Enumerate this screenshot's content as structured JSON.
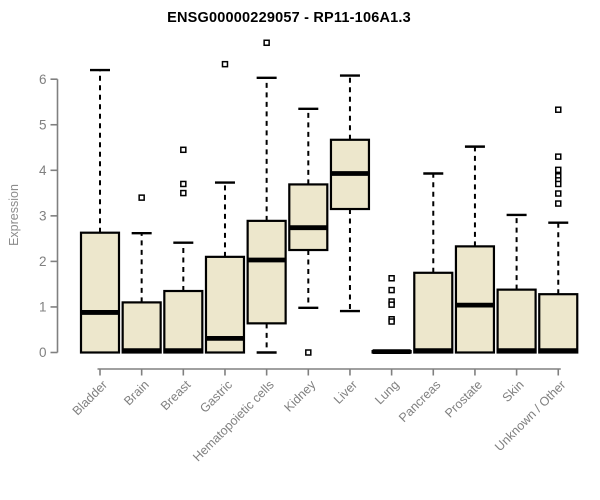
{
  "chart_data": {
    "type": "boxplot",
    "title": "ENSG00000229057 - RP11-106A1.3",
    "ylabel": "Expression",
    "xlabel": "",
    "ylim": [
      0,
      6.9
    ],
    "y_ticks": [
      0,
      1,
      2,
      3,
      4,
      5,
      6
    ],
    "grid": false,
    "legend": false,
    "categories": [
      "Bladder",
      "Brain",
      "Breast",
      "Gastric",
      "Hematopoietic cells",
      "Kidney",
      "Liver",
      "Lung",
      "Pancreas",
      "Prostate",
      "Skin",
      "Unknown / Other"
    ],
    "series": [
      {
        "name": "Bladder",
        "low": 0,
        "q1": 0,
        "median": 0.88,
        "q3": 2.63,
        "high": 6.2,
        "outliers": []
      },
      {
        "name": "Brain",
        "low": 0,
        "q1": 0,
        "median": 0.04,
        "q3": 1.1,
        "high": 2.62,
        "outliers": [
          3.4
        ]
      },
      {
        "name": "Breast",
        "low": 0,
        "q1": 0,
        "median": 0.04,
        "q3": 1.35,
        "high": 2.41,
        "outliers": [
          4.45,
          3.7,
          3.5
        ]
      },
      {
        "name": "Gastric",
        "low": 0,
        "q1": 0,
        "median": 0.31,
        "q3": 2.1,
        "high": 3.73,
        "outliers": [
          6.33
        ]
      },
      {
        "name": "Hematopoietic cells",
        "low": 0,
        "q1": 0.64,
        "median": 2.03,
        "q3": 2.89,
        "high": 6.03,
        "outliers": [
          6.8
        ]
      },
      {
        "name": "Kidney",
        "low": 0.98,
        "q1": 2.25,
        "median": 2.74,
        "q3": 3.69,
        "high": 5.35,
        "outliers": [
          0.0
        ]
      },
      {
        "name": "Liver",
        "low": 0.91,
        "q1": 3.15,
        "median": 3.93,
        "q3": 4.67,
        "high": 6.08,
        "outliers": []
      },
      {
        "name": "Lung",
        "low": 0,
        "q1": 0,
        "median": 0.02,
        "q3": 0.03,
        "high": 0.03,
        "outliers": [
          1.63,
          1.37,
          1.12,
          1.05,
          0.73,
          0.68
        ]
      },
      {
        "name": "Pancreas",
        "low": 0,
        "q1": 0,
        "median": 0.04,
        "q3": 1.75,
        "high": 3.93,
        "outliers": []
      },
      {
        "name": "Prostate",
        "low": 0,
        "q1": 0,
        "median": 1.04,
        "q3": 2.33,
        "high": 4.52,
        "outliers": []
      },
      {
        "name": "Skin",
        "low": 0,
        "q1": 0,
        "median": 0.04,
        "q3": 1.38,
        "high": 3.02,
        "outliers": []
      },
      {
        "name": "Unknown / Other",
        "low": 0,
        "q1": 0,
        "median": 0.04,
        "q3": 1.28,
        "high": 2.85,
        "outliers": [
          5.33,
          4.3,
          4.01,
          3.87,
          3.78,
          3.7,
          3.49,
          3.27
        ]
      }
    ],
    "style": {
      "box_fill": "#EDE7CC",
      "box_border": "#000000",
      "median_color": "#000000",
      "whisker_color": "#000000",
      "outlier_marker": "open-square",
      "axis_color": "#808080",
      "label_color": "#808080",
      "title_color": "#000000",
      "background": "#FFFFFF"
    }
  }
}
